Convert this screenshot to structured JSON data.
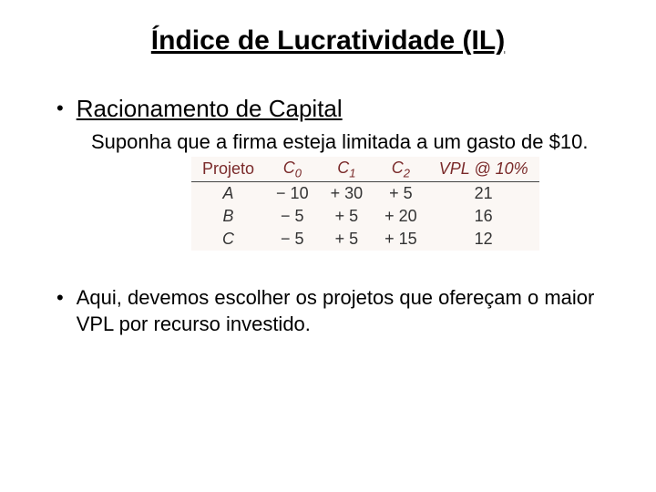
{
  "title": "Índice de Lucratividade (IL)",
  "bullet1_heading": "Racionamento de Capital",
  "body1": "Suponha que a firma esteja limitada a um gasto de $10.",
  "table": {
    "headers": {
      "h0": "Projeto",
      "h1_base": "C",
      "h1_sub": "0",
      "h2_base": "C",
      "h2_sub": "1",
      "h3_base": "C",
      "h3_sub": "2",
      "h4": "VPL @ 10%"
    },
    "rows": [
      {
        "p": "A",
        "c0": "− 10",
        "c1": "+ 30",
        "c2": "+ 5",
        "vpl": "21"
      },
      {
        "p": "B",
        "c0": "− 5",
        "c1": "+ 5",
        "c2": "+ 20",
        "vpl": "16"
      },
      {
        "p": "C",
        "c0": "− 5",
        "c1": "+ 5",
        "c2": "+ 15",
        "vpl": "12"
      }
    ]
  },
  "bullet2_body": "Aqui, devemos escolher os projetos que ofereçam o maior VPL por recurso investido.",
  "colors": {
    "table_bg": "#fbf7f4",
    "header_color": "#7a2a2a",
    "text": "#000000"
  }
}
